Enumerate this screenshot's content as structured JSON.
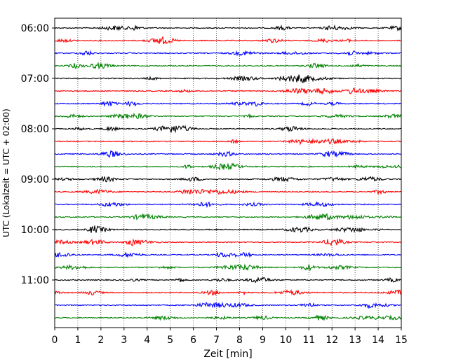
{
  "chart_data": {
    "type": "line",
    "title": "",
    "xlabel": "Zeit  [min]",
    "ylabel": "UTC (Lokalzeit = UTC + 02:00)",
    "xlim": [
      0,
      15
    ],
    "x_ticks": [
      "0",
      "1",
      "2",
      "3",
      "4",
      "5",
      "6",
      "7",
      "8",
      "9",
      "10",
      "11",
      "12",
      "13",
      "14",
      "15"
    ],
    "y_tick_labels": [
      "06:00",
      "07:00",
      "08:00",
      "09:00",
      "10:00",
      "11:00"
    ],
    "x_grid": "dotted vertical lines at each minute",
    "trace_interval_minutes": 15,
    "trace_start_times": [
      "06:00",
      "06:15",
      "06:30",
      "06:45",
      "07:00",
      "07:15",
      "07:30",
      "07:45",
      "08:00",
      "08:15",
      "08:30",
      "08:45",
      "09:00",
      "09:15",
      "09:30",
      "09:45",
      "10:00",
      "10:15",
      "10:30",
      "10:45",
      "11:00",
      "11:15",
      "11:30",
      "11:45"
    ],
    "color_cycle": [
      "#000000",
      "#ff0000",
      "#0000ff",
      "#008000"
    ],
    "legend": "none"
  }
}
